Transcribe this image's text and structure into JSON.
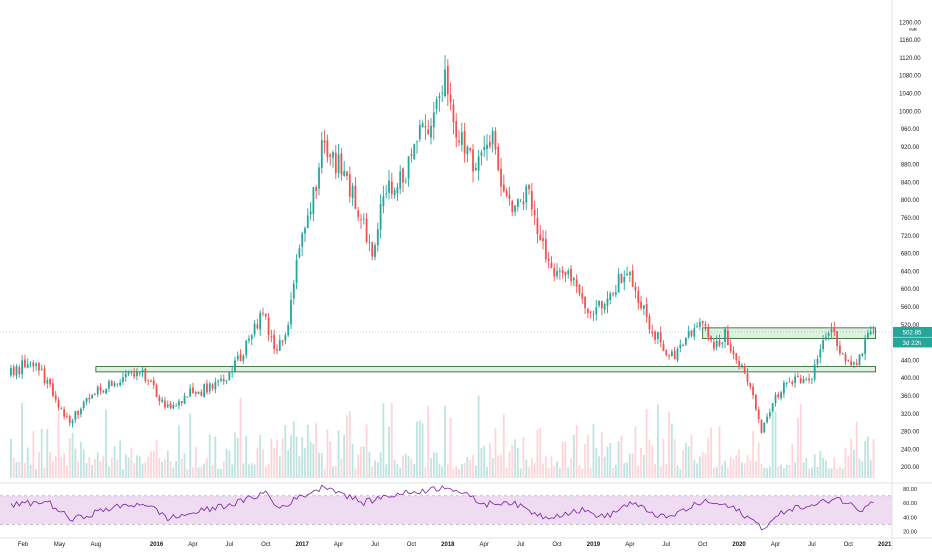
{
  "chart_data": {
    "type": "candlestick",
    "price_axis": {
      "currency": "INR",
      "ticks": [
        "1200.00",
        "1160.00",
        "1120.00",
        "1080.00",
        "1040.00",
        "1000.00",
        "960.00",
        "920.00",
        "880.00",
        "840.00",
        "800.00",
        "760.00",
        "720.00",
        "680.00",
        "640.00",
        "600.00",
        "560.00",
        "520.00",
        "480.00",
        "440.00",
        "400.00",
        "360.00",
        "320.00",
        "280.00",
        "240.00",
        "200.00"
      ],
      "range": [
        170,
        1222
      ]
    },
    "time_axis": {
      "labels": [
        "Feb",
        "May",
        "Aug",
        "2016",
        "Apr",
        "Jul",
        "Oct",
        "2017",
        "Apr",
        "Jul",
        "Oct",
        "2018",
        "Apr",
        "Jul",
        "Oct",
        "2019",
        "Apr",
        "Jul",
        "Oct",
        "2020",
        "Apr",
        "Jul",
        "Oct",
        "2021"
      ]
    },
    "last_price": {
      "value": "502.85",
      "countdown": "3d 22h",
      "color": "#26a69a"
    },
    "zones": [
      {
        "name": "resistance-zone",
        "low": 488,
        "high": 512,
        "start": "2019-10",
        "end": "2020-12"
      },
      {
        "name": "support-zone",
        "low": 413,
        "high": 425,
        "start": "2015-08",
        "end": "2020-12"
      }
    ],
    "price_path": [
      {
        "date": "2015-01",
        "close": 405
      },
      {
        "date": "2015-03",
        "close": 440
      },
      {
        "date": "2015-04",
        "close": 400
      },
      {
        "date": "2015-06",
        "close": 300
      },
      {
        "date": "2015-08",
        "close": 360
      },
      {
        "date": "2015-10",
        "close": 395
      },
      {
        "date": "2015-12",
        "close": 420
      },
      {
        "date": "2016-02",
        "close": 330
      },
      {
        "date": "2016-04",
        "close": 365
      },
      {
        "date": "2016-06",
        "close": 380
      },
      {
        "date": "2016-07",
        "close": 400
      },
      {
        "date": "2016-08",
        "close": 440
      },
      {
        "date": "2016-09",
        "close": 490
      },
      {
        "date": "2016-10",
        "close": 550
      },
      {
        "date": "2016-11",
        "close": 455
      },
      {
        "date": "2016-12",
        "close": 520
      },
      {
        "date": "2017-01",
        "close": 680
      },
      {
        "date": "2017-02",
        "close": 780
      },
      {
        "date": "2017-03",
        "close": 940
      },
      {
        "date": "2017-05",
        "close": 830
      },
      {
        "date": "2017-07",
        "close": 690
      },
      {
        "date": "2017-08",
        "close": 800
      },
      {
        "date": "2017-10",
        "close": 880
      },
      {
        "date": "2017-12",
        "close": 1000
      },
      {
        "date": "2018-01",
        "close": 1090
      },
      {
        "date": "2018-02",
        "close": 950
      },
      {
        "date": "2018-03",
        "close": 890
      },
      {
        "date": "2018-04",
        "close": 880
      },
      {
        "date": "2018-05",
        "close": 950
      },
      {
        "date": "2018-06",
        "close": 800
      },
      {
        "date": "2018-07",
        "close": 780
      },
      {
        "date": "2018-08",
        "close": 820
      },
      {
        "date": "2018-09",
        "close": 700
      },
      {
        "date": "2018-10",
        "close": 640
      },
      {
        "date": "2018-12",
        "close": 610
      },
      {
        "date": "2019-01",
        "close": 540
      },
      {
        "date": "2019-03",
        "close": 600
      },
      {
        "date": "2019-04",
        "close": 640
      },
      {
        "date": "2019-05",
        "close": 560
      },
      {
        "date": "2019-06",
        "close": 520
      },
      {
        "date": "2019-07",
        "close": 460
      },
      {
        "date": "2019-08",
        "close": 445
      },
      {
        "date": "2019-09",
        "close": 500
      },
      {
        "date": "2019-10",
        "close": 525
      },
      {
        "date": "2019-11",
        "close": 470
      },
      {
        "date": "2019-12",
        "close": 500
      },
      {
        "date": "2020-01",
        "close": 440
      },
      {
        "date": "2020-02",
        "close": 400
      },
      {
        "date": "2020-03",
        "close": 280
      },
      {
        "date": "2020-04",
        "close": 340
      },
      {
        "date": "2020-05",
        "close": 385
      },
      {
        "date": "2020-06",
        "close": 400
      },
      {
        "date": "2020-07",
        "close": 390
      },
      {
        "date": "2020-08",
        "close": 470
      },
      {
        "date": "2020-09",
        "close": 500
      },
      {
        "date": "2020-10",
        "close": 440
      },
      {
        "date": "2020-11",
        "close": 430
      },
      {
        "date": "2020-12",
        "close": 502.85
      }
    ],
    "volume": {
      "relative_scale": "low"
    },
    "rsi": {
      "ticks": [
        "80.00",
        "60.00",
        "40.00",
        "20.00"
      ],
      "range": [
        15,
        88
      ],
      "band": [
        30,
        70
      ],
      "band_color": "#e1bee7",
      "line_color": "#7b1fa2",
      "values": [
        {
          "date": "2015-01",
          "value": 57
        },
        {
          "date": "2015-04",
          "value": 62
        },
        {
          "date": "2015-06",
          "value": 36
        },
        {
          "date": "2015-09",
          "value": 52
        },
        {
          "date": "2015-12",
          "value": 60
        },
        {
          "date": "2016-02",
          "value": 38
        },
        {
          "date": "2016-05",
          "value": 50
        },
        {
          "date": "2016-08",
          "value": 62
        },
        {
          "date": "2016-10",
          "value": 75
        },
        {
          "date": "2016-11",
          "value": 52
        },
        {
          "date": "2017-01",
          "value": 70
        },
        {
          "date": "2017-03",
          "value": 84
        },
        {
          "date": "2017-06",
          "value": 60
        },
        {
          "date": "2017-08",
          "value": 70
        },
        {
          "date": "2017-12",
          "value": 80
        },
        {
          "date": "2018-01",
          "value": 84
        },
        {
          "date": "2018-04",
          "value": 58
        },
        {
          "date": "2018-06",
          "value": 62
        },
        {
          "date": "2018-09",
          "value": 40
        },
        {
          "date": "2018-12",
          "value": 50
        },
        {
          "date": "2019-02",
          "value": 40
        },
        {
          "date": "2019-04",
          "value": 60
        },
        {
          "date": "2019-07",
          "value": 38
        },
        {
          "date": "2019-10",
          "value": 62
        },
        {
          "date": "2019-12",
          "value": 56
        },
        {
          "date": "2020-01",
          "value": 48
        },
        {
          "date": "2020-03",
          "value": 25
        },
        {
          "date": "2020-05",
          "value": 52
        },
        {
          "date": "2020-07",
          "value": 55
        },
        {
          "date": "2020-09",
          "value": 68
        },
        {
          "date": "2020-11",
          "value": 50
        },
        {
          "date": "2020-12",
          "value": 65
        }
      ]
    },
    "colors": {
      "up": "#26a69a",
      "down": "#ef5350",
      "zone_fill": "#c8e6c9",
      "zone_border": "#1b5e20"
    }
  }
}
